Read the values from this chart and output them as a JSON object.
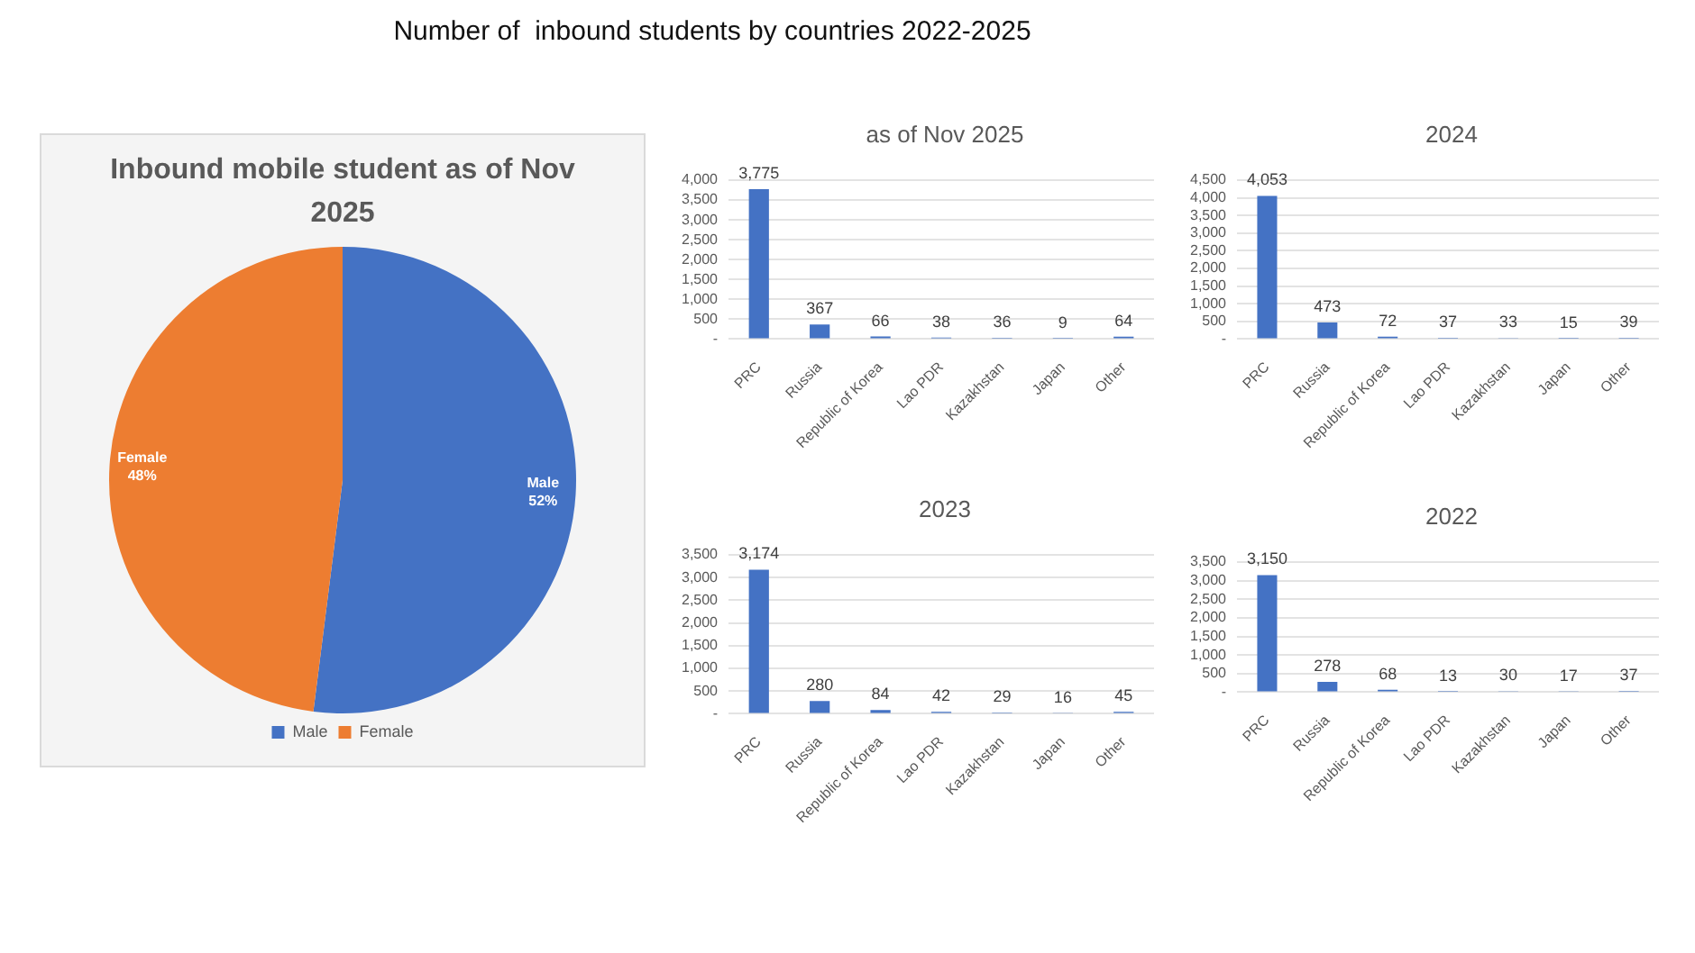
{
  "chart_data": [
    {
      "type": "other",
      "title": "Number of  inbound students by countries 2022-2025"
    },
    {
      "type": "pie",
      "title": "Inbound mobile student as of Nov 2025",
      "categories": [
        "Male",
        "Female"
      ],
      "values": [
        52,
        48
      ],
      "colors": [
        "#4472c4",
        "#ed7d31"
      ],
      "value_labels": [
        "52%",
        "48%"
      ],
      "legend": "bottom"
    },
    {
      "type": "bar",
      "title": "as of Nov 2025",
      "categories": [
        "PRC",
        "Russia",
        "Republic of Korea",
        "Lao PDR",
        "Kazakhstan",
        "Japan",
        "Other"
      ],
      "values": [
        3775,
        367,
        66,
        38,
        36,
        9,
        64
      ],
      "value_labels": [
        "3,775",
        "367",
        "66",
        "38",
        "36",
        "9",
        "64"
      ],
      "color": "#4472c4",
      "ylim": [
        0,
        4000
      ],
      "yticks": [
        {
          "value": 0,
          "label": "-"
        },
        {
          "value": 500,
          "label": "500"
        },
        {
          "value": 1000,
          "label": "1,000"
        },
        {
          "value": 1500,
          "label": "1,500"
        },
        {
          "value": 2000,
          "label": "2,000"
        },
        {
          "value": 2500,
          "label": "2,500"
        },
        {
          "value": 3000,
          "label": "3,000"
        },
        {
          "value": 3500,
          "label": "3,500"
        },
        {
          "value": 4000,
          "label": "4,000"
        }
      ],
      "grid": "y"
    },
    {
      "type": "bar",
      "title": "2024",
      "categories": [
        "PRC",
        "Russia",
        "Republic of Korea",
        "Lao PDR",
        "Kazakhstan",
        "Japan",
        "Other"
      ],
      "values": [
        4053,
        473,
        72,
        37,
        33,
        15,
        39
      ],
      "value_labels": [
        "4,053",
        "473",
        "72",
        "37",
        "33",
        "15",
        "39"
      ],
      "color": "#4472c4",
      "ylim": [
        0,
        4500
      ],
      "yticks": [
        {
          "value": 0,
          "label": "-"
        },
        {
          "value": 500,
          "label": "500"
        },
        {
          "value": 1000,
          "label": "1,000"
        },
        {
          "value": 1500,
          "label": "1,500"
        },
        {
          "value": 2000,
          "label": "2,000"
        },
        {
          "value": 2500,
          "label": "2,500"
        },
        {
          "value": 3000,
          "label": "3,000"
        },
        {
          "value": 3500,
          "label": "3,500"
        },
        {
          "value": 4000,
          "label": "4,000"
        },
        {
          "value": 4500,
          "label": "4,500"
        }
      ],
      "grid": "y"
    },
    {
      "type": "bar",
      "title": "2023",
      "categories": [
        "PRC",
        "Russia",
        "Republic of Korea",
        "Lao PDR",
        "Kazakhstan",
        "Japan",
        "Other"
      ],
      "values": [
        3174,
        280,
        84,
        42,
        29,
        16,
        45
      ],
      "value_labels": [
        "3,174",
        "280",
        "84",
        "42",
        "29",
        "16",
        "45"
      ],
      "color": "#4472c4",
      "ylim": [
        0,
        3500
      ],
      "yticks": [
        {
          "value": 0,
          "label": "-"
        },
        {
          "value": 500,
          "label": "500"
        },
        {
          "value": 1000,
          "label": "1,000"
        },
        {
          "value": 1500,
          "label": "1,500"
        },
        {
          "value": 2000,
          "label": "2,000"
        },
        {
          "value": 2500,
          "label": "2,500"
        },
        {
          "value": 3000,
          "label": "3,000"
        },
        {
          "value": 3500,
          "label": "3,500"
        }
      ],
      "grid": "y"
    },
    {
      "type": "bar",
      "title": "2022",
      "categories": [
        "PRC",
        "Russia",
        "Republic of Korea",
        "Lao PDR",
        "Kazakhstan",
        "Japan",
        "Other"
      ],
      "values": [
        3150,
        278,
        68,
        13,
        30,
        17,
        37
      ],
      "value_labels": [
        "3,150",
        "278",
        "68",
        "13",
        "30",
        "17",
        "37"
      ],
      "color": "#4472c4",
      "ylim": [
        0,
        3500
      ],
      "yticks": [
        {
          "value": 0,
          "label": "-"
        },
        {
          "value": 500,
          "label": "500"
        },
        {
          "value": 1000,
          "label": "1,000"
        },
        {
          "value": 1500,
          "label": "1,500"
        },
        {
          "value": 2000,
          "label": "2,000"
        },
        {
          "value": 2500,
          "label": "2,500"
        },
        {
          "value": 3000,
          "label": "3,000"
        },
        {
          "value": 3500,
          "label": "3,500"
        }
      ],
      "grid": "y"
    }
  ]
}
